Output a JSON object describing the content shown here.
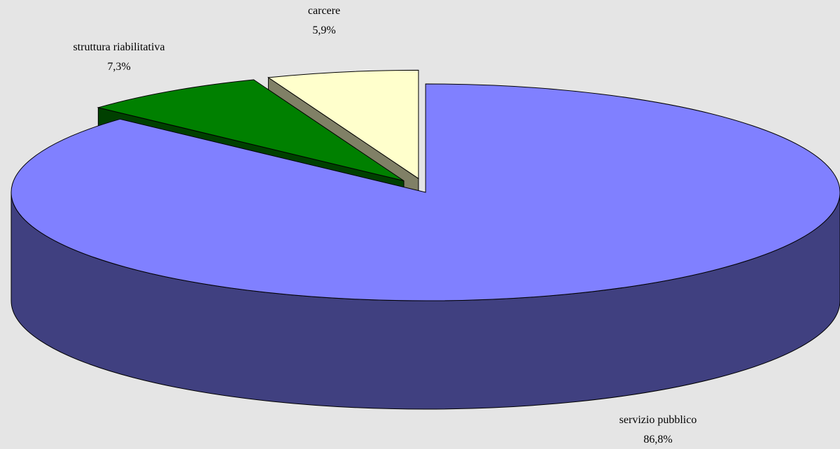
{
  "chart_data": {
    "type": "pie",
    "categories": [
      "servizio pubblico",
      "struttura riabilitativa",
      "carcere"
    ],
    "values": [
      86.8,
      7.3,
      5.9
    ],
    "value_labels": [
      "86,8%",
      "7,3%",
      "5,9%"
    ],
    "colors": [
      "#8080ff",
      "#008000",
      "#ffffcc"
    ]
  }
}
